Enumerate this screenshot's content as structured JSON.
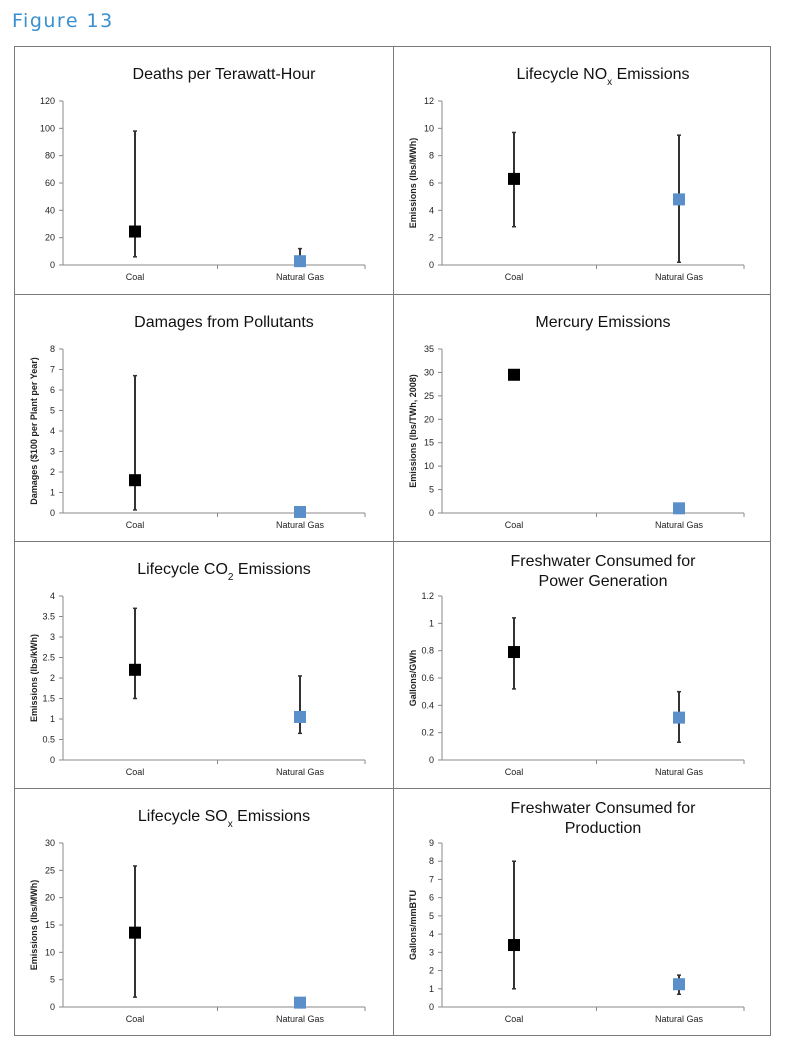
{
  "figure_title": "Figure 13",
  "colors": {
    "coal": "#000000",
    "gas": "#5b8fc9",
    "accent": "#3a8fd0"
  },
  "chart_data": [
    {
      "type": "scatter",
      "title": "Deaths per Terawatt-Hour",
      "ylabel": "",
      "categories": [
        "Coal",
        "Natural Gas"
      ],
      "ylim": [
        0,
        120
      ],
      "yticks": [
        0,
        20,
        40,
        60,
        80,
        100,
        120
      ],
      "points": [
        {
          "category": "Coal",
          "value": 24.5,
          "low": 6,
          "high": 98
        },
        {
          "category": "Natural Gas",
          "value": 2.8,
          "low": 0,
          "high": 12
        }
      ]
    },
    {
      "type": "scatter",
      "title": "Lifecycle NO",
      "title_subscript": "x",
      "title_suffix": " Emissions",
      "ylabel": "Emissions (lbs/MWh)",
      "categories": [
        "Coal",
        "Natural Gas"
      ],
      "ylim": [
        0,
        12
      ],
      "yticks": [
        0,
        2,
        4,
        6,
        8,
        10,
        12
      ],
      "points": [
        {
          "category": "Coal",
          "value": 6.3,
          "low": 2.8,
          "high": 9.7
        },
        {
          "category": "Natural Gas",
          "value": 4.8,
          "low": 0.2,
          "high": 9.5
        }
      ]
    },
    {
      "type": "scatter",
      "title": "Damages from Pollutants",
      "ylabel": "Damages ($100 per Plant per Year)",
      "categories": [
        "Coal",
        "Natural Gas"
      ],
      "ylim": [
        0,
        8
      ],
      "yticks": [
        0,
        1,
        2,
        3,
        4,
        5,
        6,
        7,
        8
      ],
      "points": [
        {
          "category": "Coal",
          "value": 1.6,
          "low": 0.15,
          "high": 6.7
        },
        {
          "category": "Natural Gas",
          "value": 0.05,
          "low": 0.05,
          "high": 0.05
        }
      ]
    },
    {
      "type": "scatter",
      "title": "Mercury Emissions",
      "ylabel": "Emissions (lbs/TWh, 2008)",
      "categories": [
        "Coal",
        "Natural Gas"
      ],
      "ylim": [
        0,
        35
      ],
      "yticks": [
        0,
        5,
        10,
        15,
        20,
        25,
        30,
        35
      ],
      "points": [
        {
          "category": "Coal",
          "value": 29.5,
          "low": 29.5,
          "high": 29.5
        },
        {
          "category": "Natural Gas",
          "value": 1.0,
          "low": 1.0,
          "high": 1.0
        }
      ]
    },
    {
      "type": "scatter",
      "title": "Lifecycle CO",
      "title_subscript": "2",
      "title_suffix": " Emissions",
      "ylabel": "Emissions (lbs/kWh)",
      "categories": [
        "Coal",
        "Natural Gas"
      ],
      "ylim": [
        0,
        4
      ],
      "yticks": [
        0,
        0.5,
        1,
        1.5,
        2,
        2.5,
        3,
        3.5,
        4
      ],
      "points": [
        {
          "category": "Coal",
          "value": 2.2,
          "low": 1.5,
          "high": 3.7
        },
        {
          "category": "Natural Gas",
          "value": 1.05,
          "low": 0.65,
          "high": 2.05
        }
      ]
    },
    {
      "type": "scatter",
      "title": "Freshwater Consumed for",
      "title_line2": "Power Generation",
      "ylabel": "Gallons/GWh",
      "categories": [
        "Coal",
        "Natural Gas"
      ],
      "ylim": [
        0,
        1.2
      ],
      "yticks": [
        0,
        0.2,
        0.4,
        0.6,
        0.8,
        1,
        1.2
      ],
      "points": [
        {
          "category": "Coal",
          "value": 0.79,
          "low": 0.52,
          "high": 1.04
        },
        {
          "category": "Natural Gas",
          "value": 0.31,
          "low": 0.13,
          "high": 0.5
        }
      ]
    },
    {
      "type": "scatter",
      "title": "Lifecycle SO",
      "title_subscript": "x",
      "title_suffix": " Emissions",
      "ylabel": "Emissions (lbs/MWh)",
      "categories": [
        "Coal",
        "Natural Gas"
      ],
      "ylim": [
        0,
        30
      ],
      "yticks": [
        0,
        5,
        10,
        15,
        20,
        25,
        30
      ],
      "points": [
        {
          "category": "Coal",
          "value": 13.6,
          "low": 1.8,
          "high": 25.8
        },
        {
          "category": "Natural Gas",
          "value": 0.8,
          "low": 0.8,
          "high": 0.8
        }
      ]
    },
    {
      "type": "scatter",
      "title": "Freshwater Consumed for",
      "title_line2": "Production",
      "ylabel": "Gallons/mmBTU",
      "categories": [
        "Coal",
        "Natural Gas"
      ],
      "ylim": [
        0,
        9
      ],
      "yticks": [
        0,
        1,
        2,
        3,
        4,
        5,
        6,
        7,
        8,
        9
      ],
      "points": [
        {
          "category": "Coal",
          "value": 3.4,
          "low": 1.0,
          "high": 8.0
        },
        {
          "category": "Natural Gas",
          "value": 1.25,
          "low": 0.7,
          "high": 1.75
        }
      ]
    }
  ]
}
